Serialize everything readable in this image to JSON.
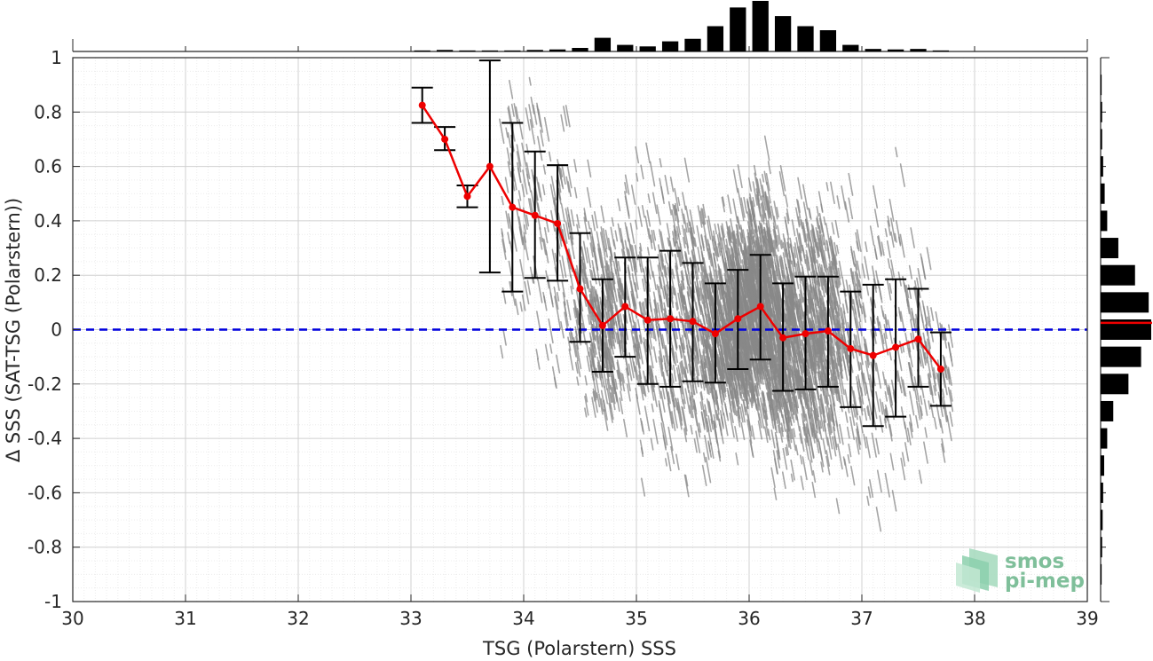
{
  "chart_data": {
    "type": "scatter",
    "xlabel": "TSG (Polarstern) SSS",
    "ylabel": "Δ SSS (SAT-TSG (Polarstern))",
    "xlim": [
      30,
      39
    ],
    "ylim": [
      -1,
      1
    ],
    "x_ticks": [
      "30",
      "31",
      "32",
      "33",
      "34",
      "35",
      "36",
      "37",
      "38",
      "39"
    ],
    "y_ticks": [
      "-1",
      "-0.8",
      "-0.6",
      "-0.4",
      "-0.2",
      "0",
      "0.2",
      "0.4",
      "0.6",
      "0.8",
      "1"
    ],
    "grid": true,
    "reference_line": {
      "y": 0,
      "style": "dashed",
      "color": "#0000dd"
    },
    "binned_mean": {
      "color": "#ee0000",
      "x": [
        33.1,
        33.3,
        33.5,
        33.7,
        33.9,
        34.1,
        34.3,
        34.5,
        34.7,
        34.9,
        35.1,
        35.3,
        35.5,
        35.7,
        35.9,
        36.1,
        36.3,
        36.5,
        36.7,
        36.9,
        37.1,
        37.3,
        37.5,
        37.7
      ],
      "mean": [
        0.825,
        0.7,
        0.49,
        0.6,
        0.45,
        0.42,
        0.39,
        0.15,
        0.015,
        0.085,
        0.035,
        0.04,
        0.03,
        -0.015,
        0.04,
        0.085,
        -0.03,
        -0.015,
        -0.005,
        -0.07,
        -0.095,
        -0.065,
        -0.035,
        -0.145
      ],
      "upper": [
        0.89,
        0.745,
        0.53,
        0.99,
        0.76,
        0.655,
        0.605,
        0.355,
        0.185,
        0.265,
        0.265,
        0.29,
        0.245,
        0.17,
        0.22,
        0.275,
        0.17,
        0.195,
        0.195,
        0.14,
        0.165,
        0.185,
        0.15,
        -0.01
      ],
      "lower": [
        0.76,
        0.66,
        0.45,
        0.21,
        0.14,
        0.19,
        0.18,
        -0.045,
        -0.155,
        -0.1,
        -0.2,
        -0.21,
        -0.19,
        -0.195,
        -0.145,
        -0.11,
        -0.225,
        -0.22,
        -0.21,
        -0.285,
        -0.355,
        -0.32,
        -0.21,
        -0.28
      ]
    },
    "scatter_cloud": {
      "color": "#888888",
      "x_range": [
        33.8,
        37.8
      ],
      "description_note": ""
    },
    "top_histogram": {
      "bin_centers": [
        33.1,
        33.3,
        33.5,
        33.7,
        33.9,
        34.1,
        34.3,
        34.5,
        34.7,
        34.9,
        35.1,
        35.3,
        35.5,
        35.7,
        35.9,
        36.1,
        36.3,
        36.5,
        36.7,
        36.9,
        37.1,
        37.3,
        37.5,
        37.7
      ],
      "relative_heights": [
        0.02,
        0.03,
        0.02,
        0.02,
        0.02,
        0.03,
        0.04,
        0.07,
        0.27,
        0.13,
        0.1,
        0.2,
        0.25,
        0.5,
        0.87,
        1.0,
        0.7,
        0.5,
        0.42,
        0.13,
        0.05,
        0.04,
        0.05,
        0.02
      ]
    },
    "right_histogram": {
      "bin_centers": [
        0.9,
        0.8,
        0.7,
        0.6,
        0.5,
        0.4,
        0.3,
        0.2,
        0.1,
        0.0,
        -0.1,
        -0.2,
        -0.3,
        -0.4,
        -0.5,
        -0.6,
        -0.7,
        -0.8,
        -0.9
      ],
      "relative_heights": [
        0.02,
        0.03,
        0.03,
        0.05,
        0.08,
        0.13,
        0.35,
        0.68,
        0.95,
        1.0,
        0.8,
        0.55,
        0.25,
        0.13,
        0.07,
        0.05,
        0.04,
        0.03,
        0.02
      ],
      "median_line": {
        "y": 0.025,
        "color": "#ee0000"
      }
    }
  },
  "logo": {
    "line1": "smos",
    "line2": "pi-mep"
  }
}
